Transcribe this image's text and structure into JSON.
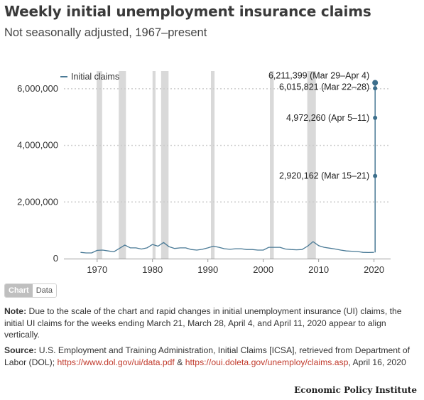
{
  "title": "Weekly initial unemployment insurance claims",
  "subtitle": "Not seasonally adjusted, 1967–present",
  "toggle": {
    "chart_label": "Chart",
    "data_label": "Data"
  },
  "note": {
    "label": "Note:",
    "text": "Due to the scale of the chart and rapid changes in initial unemployment insurance (UI) claims, the initial UI claims for the weeks ending March 21, March 28, April 4, and April 11, 2020 appear to align vertically."
  },
  "source": {
    "label": "Source:",
    "text_before": "U.S. Employment and Training Administration, Initial Claims [ICSA], retrieved from Department of Labor (DOL);",
    "link1": "https://www.dol.gov/ui/data.pdf",
    "amp": "&",
    "link2": "https://oui.doleta.gov/unemploy/claims.asp",
    "text_after": ", April 16, 2020"
  },
  "brand": "Economic Policy Institute",
  "colors": {
    "line": "#4a7a96",
    "marker": "#3d6f8c",
    "recession": "#d9d9d9",
    "grid": "#cccccc"
  },
  "chart_data": {
    "type": "line",
    "series": [
      {
        "name": "Initial claims",
        "x": [
          1967.0,
          1968.0,
          1969.0,
          1970.0,
          1971.0,
          1972.0,
          1973.0,
          1974.0,
          1975.0,
          1976.0,
          1977.0,
          1978.0,
          1979.0,
          1980.0,
          1981.0,
          1982.0,
          1983.0,
          1984.0,
          1985.0,
          1986.0,
          1987.0,
          1988.0,
          1989.0,
          1990.0,
          1991.0,
          1992.0,
          1993.0,
          1994.0,
          1995.0,
          1996.0,
          1997.0,
          1998.0,
          1999.0,
          2000.0,
          2001.0,
          2002.0,
          2003.0,
          2004.0,
          2005.0,
          2006.0,
          2007.0,
          2008.0,
          2009.0,
          2010.0,
          2011.0,
          2012.0,
          2013.0,
          2014.0,
          2015.0,
          2016.0,
          2017.0,
          2018.0,
          2019.0,
          2020.0
        ],
        "values": [
          220000,
          200000,
          200000,
          290000,
          300000,
          270000,
          240000,
          360000,
          480000,
          380000,
          380000,
          340000,
          380000,
          500000,
          440000,
          570000,
          420000,
          360000,
          380000,
          380000,
          320000,
          300000,
          330000,
          380000,
          440000,
          400000,
          350000,
          330000,
          350000,
          350000,
          320000,
          320000,
          300000,
          300000,
          400000,
          400000,
          400000,
          340000,
          320000,
          310000,
          320000,
          440000,
          600000,
          460000,
          400000,
          370000,
          340000,
          300000,
          270000,
          260000,
          250000,
          220000,
          215000,
          220000
        ]
      }
    ],
    "xlim": [
      1964,
      2023
    ],
    "ylim": [
      0,
      6500000
    ],
    "x_ticks": [
      1970,
      1980,
      1990,
      2000,
      2010,
      2020
    ],
    "x_tick_labels": [
      "1970",
      "1980",
      "1990",
      "2000",
      "2010",
      "2020"
    ],
    "y_ticks": [
      0,
      2000000,
      4000000,
      6000000
    ],
    "y_tick_labels": [
      "0",
      "2,000,000",
      "4,000,000",
      "6,000,000"
    ],
    "recessions": [
      [
        1969.9,
        1970.9
      ],
      [
        1973.9,
        1975.2
      ],
      [
        1980.0,
        1980.55
      ],
      [
        1981.55,
        1982.9
      ],
      [
        1990.55,
        1991.2
      ],
      [
        2001.2,
        2001.9
      ],
      [
        2007.95,
        2009.5
      ]
    ],
    "spike": {
      "x": 2020.2,
      "points": [
        {
          "value": 2920162,
          "label": "2,920,162 (Mar 15–21)"
        },
        {
          "value": 6015821,
          "label": "6,015,821 (Mar 22–28)"
        },
        {
          "value": 6211399,
          "label": "6,211,399 (Mar 29–Apr 4)"
        },
        {
          "value": 4972260,
          "label": "4,972,260 (Apr 5–11)"
        }
      ]
    },
    "grid": true,
    "legend_position": "top-left"
  }
}
